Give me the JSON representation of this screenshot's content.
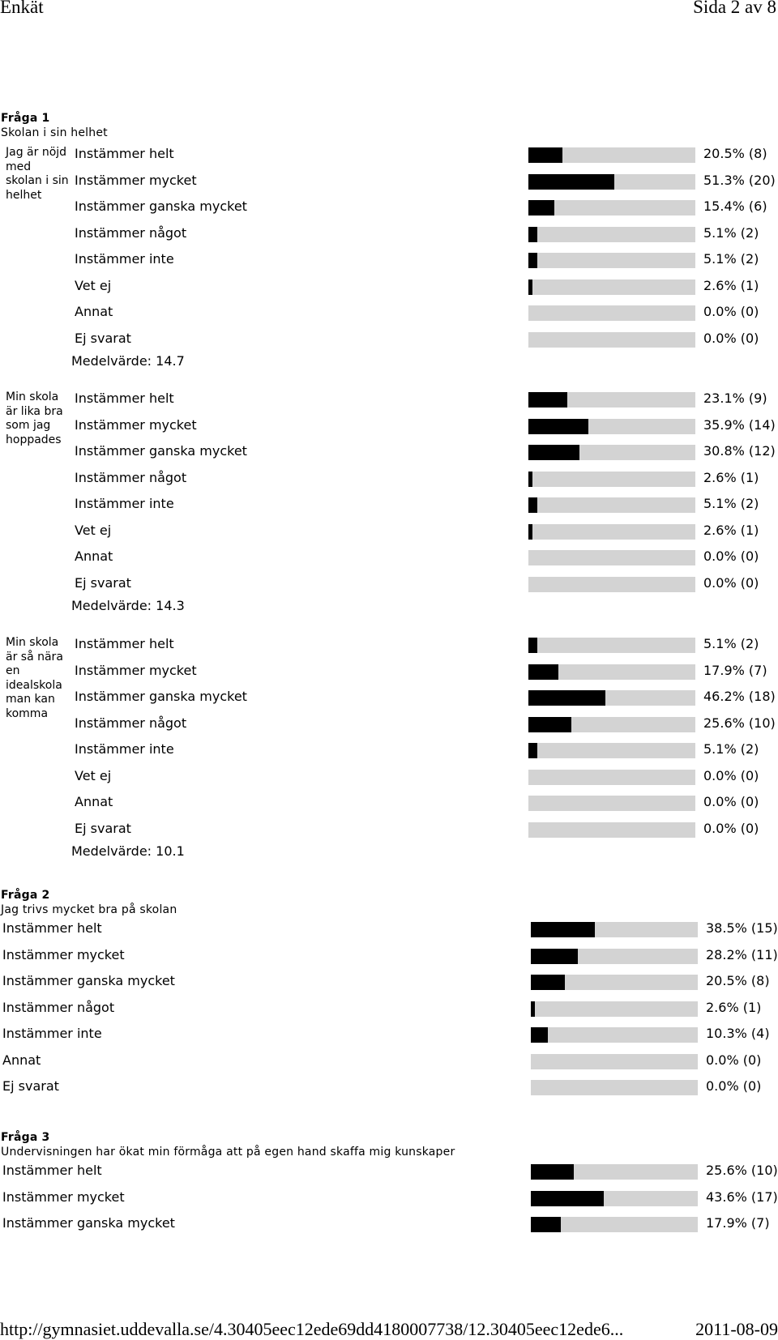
{
  "header": {
    "title": "Enkät",
    "page": "Sida 2 av 8"
  },
  "footer": {
    "url": "http://gymnasiet.uddevalla.se/4.30405eec12ede69dd4180007738/12.30405eec12ede6...",
    "date": "2011-08-09"
  },
  "q1": {
    "number": "Fråga 1",
    "title": "Skolan i sin helhet",
    "groups": [
      {
        "label": "Jag är nöjd med skolan i sin helhet",
        "mean": "Medelvärde: 14.7",
        "options": [
          {
            "label": "Instämmer helt",
            "value": "20.5% (8)",
            "pct": 20.5
          },
          {
            "label": "Instämmer mycket",
            "value": "51.3% (20)",
            "pct": 51.3
          },
          {
            "label": "Instämmer ganska mycket",
            "value": "15.4% (6)",
            "pct": 15.4
          },
          {
            "label": "Instämmer något",
            "value": "5.1% (2)",
            "pct": 5.1
          },
          {
            "label": "Instämmer inte",
            "value": "5.1% (2)",
            "pct": 5.1
          },
          {
            "label": "Vet ej",
            "value": "2.6% (1)",
            "pct": 2.6
          },
          {
            "label": "Annat",
            "value": "0.0% (0)",
            "pct": 0
          },
          {
            "label": "Ej svarat",
            "value": "0.0% (0)",
            "pct": 0
          }
        ]
      },
      {
        "label": "Min skola är lika bra som jag hoppades",
        "mean": "Medelvärde: 14.3",
        "options": [
          {
            "label": "Instämmer helt",
            "value": "23.1% (9)",
            "pct": 23.1
          },
          {
            "label": "Instämmer mycket",
            "value": "35.9% (14)",
            "pct": 35.9
          },
          {
            "label": "Instämmer ganska mycket",
            "value": "30.8% (12)",
            "pct": 30.8
          },
          {
            "label": "Instämmer något",
            "value": "2.6% (1)",
            "pct": 2.6
          },
          {
            "label": "Instämmer inte",
            "value": "5.1% (2)",
            "pct": 5.1
          },
          {
            "label": "Vet ej",
            "value": "2.6% (1)",
            "pct": 2.6
          },
          {
            "label": "Annat",
            "value": "0.0% (0)",
            "pct": 0
          },
          {
            "label": "Ej svarat",
            "value": "0.0% (0)",
            "pct": 0
          }
        ]
      },
      {
        "label": "Min skola är så nära en idealskola man kan komma",
        "mean": "Medelvärde: 10.1",
        "options": [
          {
            "label": "Instämmer helt",
            "value": "5.1% (2)",
            "pct": 5.1
          },
          {
            "label": "Instämmer mycket",
            "value": "17.9% (7)",
            "pct": 17.9
          },
          {
            "label": "Instämmer ganska mycket",
            "value": "46.2% (18)",
            "pct": 46.2
          },
          {
            "label": "Instämmer något",
            "value": "25.6% (10)",
            "pct": 25.6
          },
          {
            "label": "Instämmer inte",
            "value": "5.1% (2)",
            "pct": 5.1
          },
          {
            "label": "Vet ej",
            "value": "0.0% (0)",
            "pct": 0
          },
          {
            "label": "Annat",
            "value": "0.0% (0)",
            "pct": 0
          },
          {
            "label": "Ej svarat",
            "value": "0.0% (0)",
            "pct": 0
          }
        ]
      }
    ]
  },
  "q2": {
    "number": "Fråga 2",
    "title": "Jag trivs mycket bra på skolan",
    "options": [
      {
        "label": "Instämmer helt",
        "value": "38.5% (15)",
        "pct": 38.5
      },
      {
        "label": "Instämmer mycket",
        "value": "28.2% (11)",
        "pct": 28.2
      },
      {
        "label": "Instämmer ganska mycket",
        "value": "20.5% (8)",
        "pct": 20.5
      },
      {
        "label": "Instämmer något",
        "value": "2.6% (1)",
        "pct": 2.6
      },
      {
        "label": "Instämmer inte",
        "value": "10.3% (4)",
        "pct": 10.3
      },
      {
        "label": "Annat",
        "value": "0.0% (0)",
        "pct": 0
      },
      {
        "label": "Ej svarat",
        "value": "0.0% (0)",
        "pct": 0
      }
    ]
  },
  "q3": {
    "number": "Fråga 3",
    "title": "Undervisningen har ökat min förmåga att på egen hand skaffa mig kunskaper",
    "options": [
      {
        "label": "Instämmer helt",
        "value": "25.6% (10)",
        "pct": 25.6
      },
      {
        "label": "Instämmer mycket",
        "value": "43.6% (17)",
        "pct": 43.6
      },
      {
        "label": "Instämmer ganska mycket",
        "value": "17.9% (7)",
        "pct": 17.9
      }
    ]
  }
}
